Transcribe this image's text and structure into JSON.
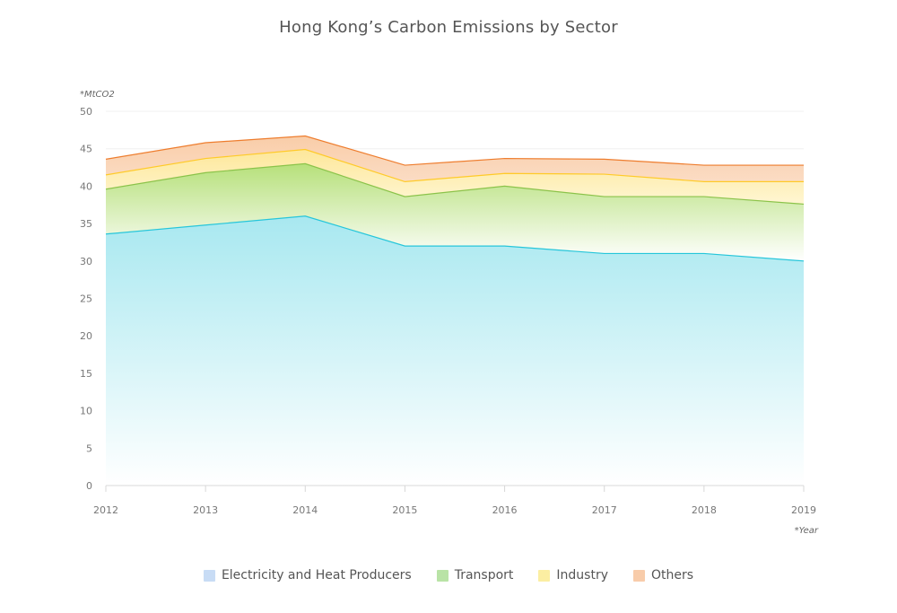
{
  "chart_data": {
    "type": "area",
    "stacked": true,
    "title": "Hong Kong’s Carbon Emissions by Sector",
    "ylabel": "*MtCO2",
    "xlabel": "*Year",
    "x": [
      "2012",
      "2013",
      "2014",
      "2015",
      "2016",
      "2017",
      "2018",
      "2019"
    ],
    "ylim": [
      0,
      50
    ],
    "yticks": [
      "0",
      "5",
      "10",
      "15",
      "20",
      "25",
      "30",
      "35",
      "40",
      "45",
      "50"
    ],
    "grid": true,
    "legend_position": "bottom",
    "series": [
      {
        "name": "Electricity and Heat Producers",
        "values": [
          33.6,
          34.8,
          36.0,
          32.0,
          32.0,
          31.0,
          31.0,
          30.0
        ],
        "color": "#26c6da",
        "legend_color": "#c8dcf5"
      },
      {
        "name": "Transport",
        "values": [
          6.0,
          7.0,
          7.0,
          6.6,
          8.0,
          7.6,
          7.6,
          7.6
        ],
        "color": "#8bc34a",
        "legend_color": "#b9e3a6"
      },
      {
        "name": "Industry",
        "values": [
          1.9,
          1.9,
          1.9,
          2.0,
          1.7,
          3.0,
          2.0,
          3.0
        ],
        "color": "#ffca28",
        "legend_color": "#fbeea2"
      },
      {
        "name": "Others",
        "values": [
          2.1,
          2.1,
          1.8,
          2.2,
          2.0,
          2.0,
          2.2,
          2.2
        ],
        "color": "#ee7d2e",
        "legend_color": "#f8ccaa"
      }
    ]
  }
}
